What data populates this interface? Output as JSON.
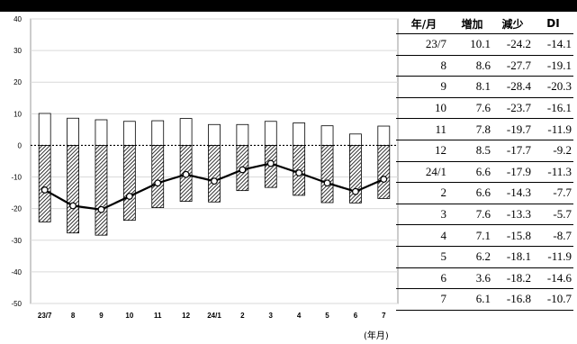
{
  "header": {
    "note": ""
  },
  "x_unit_label": "(年月)",
  "table": {
    "headers": [
      "年/月",
      "増加",
      "減少",
      "DI"
    ],
    "rows": [
      [
        "23/7",
        "10.1",
        "-24.2",
        "-14.1"
      ],
      [
        "8",
        "8.6",
        "-27.7",
        "-19.1"
      ],
      [
        "9",
        "8.1",
        "-28.4",
        "-20.3"
      ],
      [
        "10",
        "7.6",
        "-23.7",
        "-16.1"
      ],
      [
        "11",
        "7.8",
        "-19.7",
        "-11.9"
      ],
      [
        "12",
        "8.5",
        "-17.7",
        "-9.2"
      ],
      [
        "24/1",
        "6.6",
        "-17.9",
        "-11.3"
      ],
      [
        "2",
        "6.6",
        "-14.3",
        "-7.7"
      ],
      [
        "3",
        "7.6",
        "-13.3",
        "-5.7"
      ],
      [
        "4",
        "7.1",
        "-15.8",
        "-8.7"
      ],
      [
        "5",
        "6.2",
        "-18.1",
        "-11.9"
      ],
      [
        "6",
        "3.6",
        "-18.2",
        "-14.6"
      ],
      [
        "7",
        "6.1",
        "-16.8",
        "-10.7"
      ]
    ]
  },
  "chart_data": {
    "type": "bar",
    "categories": [
      "23/7",
      "8",
      "9",
      "10",
      "11",
      "12",
      "24/1",
      "2",
      "3",
      "4",
      "5",
      "6",
      "7"
    ],
    "series": [
      {
        "values": [
          10.1,
          8.6,
          8.1,
          7.6,
          7.8,
          8.5,
          6.6,
          6.6,
          7.6,
          7.1,
          6.2,
          3.6,
          6.1
        ],
        "style": "white-bar"
      },
      {
        "values": [
          -24.2,
          -27.7,
          -28.4,
          -23.7,
          -19.7,
          -17.7,
          -17.9,
          -14.3,
          -13.3,
          -15.8,
          -18.1,
          -18.2,
          -16.8
        ],
        "style": "hatched-bar"
      },
      {
        "values": [
          -14.1,
          -19.1,
          -20.3,
          -16.1,
          -11.9,
          -9.2,
          -11.3,
          -7.7,
          -5.7,
          -8.7,
          -11.9,
          -14.6,
          -10.7
        ],
        "style": "line-with-circle-markers"
      }
    ],
    "yticks": [
      40,
      30,
      20,
      10,
      0,
      -10,
      -20,
      -30,
      -40,
      -50
    ],
    "ylim": [
      -50,
      40
    ],
    "xlabel": "",
    "ylabel": "",
    "grid": true
  }
}
